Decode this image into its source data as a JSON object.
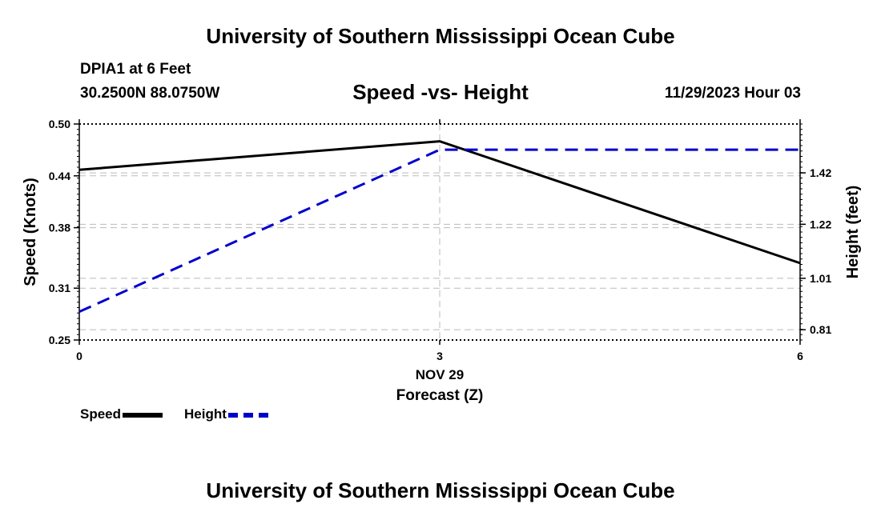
{
  "header": {
    "title": "University of Southern Mississippi Ocean Cube",
    "station": "DPIA1 at 6 Feet",
    "coords": "30.2500N  88.0750W",
    "subtitle": "Speed -vs- Height",
    "datetime": "11/29/2023 Hour 03"
  },
  "footer": {
    "title": "University of Southern Mississippi Ocean Cube"
  },
  "legend": {
    "speed_label": "Speed",
    "height_label": "Height"
  },
  "chart_data": {
    "type": "line",
    "xlabel": "Forecast (Z)",
    "date_label": "NOV 29",
    "x_ticks": [
      "0",
      "3",
      "6"
    ],
    "x": [
      0,
      3,
      6
    ],
    "xlim": [
      0,
      6
    ],
    "ylabel_left": "Speed (Knots)",
    "ylabel_right": "Height (feet)",
    "ylim_left": [
      0.25,
      0.5
    ],
    "ylim_right": [
      0.77,
      1.61
    ],
    "left_ticks": [
      "0.25",
      "0.31",
      "0.38",
      "0.44",
      "0.50"
    ],
    "right_ticks": [
      "0.81",
      "1.01",
      "1.22",
      "1.42"
    ],
    "series": [
      {
        "name": "Speed",
        "axis": "left",
        "color": "#000000",
        "style": "solid",
        "values": [
          0.447,
          0.48,
          0.339
        ]
      },
      {
        "name": "Height",
        "axis": "right",
        "color": "#0000cc",
        "style": "dashed",
        "values": [
          0.88,
          1.51,
          1.51
        ]
      }
    ],
    "grid": true
  }
}
